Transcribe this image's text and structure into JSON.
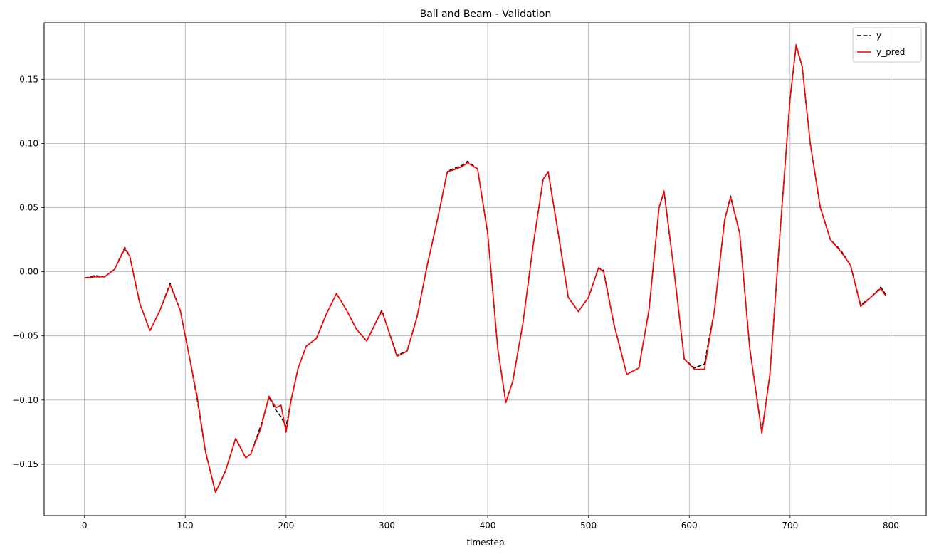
{
  "chart_data": {
    "type": "line",
    "title": "Ball and Beam - Validation",
    "xlabel": "timestep",
    "ylabel": "",
    "xlim": [
      -40,
      835
    ],
    "ylim": [
      -0.19,
      0.194
    ],
    "xticks": [
      0,
      100,
      200,
      300,
      400,
      500,
      600,
      700,
      800
    ],
    "xtick_labels": [
      "0",
      "100",
      "200",
      "300",
      "400",
      "500",
      "600",
      "700",
      "800"
    ],
    "yticks": [
      -0.15,
      -0.1,
      -0.05,
      0.0,
      0.05,
      0.1,
      0.15
    ],
    "ytick_labels": [
      "−0.15",
      "−0.10",
      "−0.05",
      "0.00",
      "0.05",
      "0.10",
      "0.15"
    ],
    "grid": true,
    "legend": "top-right",
    "series_x": [
      0,
      10,
      20,
      30,
      40,
      45,
      55,
      65,
      75,
      85,
      95,
      105,
      112,
      120,
      130,
      140,
      150,
      160,
      165,
      175,
      183,
      190,
      195,
      200,
      205,
      212,
      220,
      230,
      240,
      250,
      260,
      270,
      280,
      290,
      295,
      300,
      310,
      320,
      330,
      340,
      350,
      360,
      365,
      375,
      380,
      390,
      400,
      410,
      418,
      425,
      435,
      445,
      455,
      460,
      470,
      480,
      490,
      500,
      510,
      515,
      525,
      538,
      550,
      560,
      570,
      575,
      585,
      595,
      605,
      615,
      625,
      635,
      641,
      650,
      660,
      672,
      680,
      690,
      700,
      706,
      712,
      720,
      730,
      740,
      750,
      760,
      770,
      780,
      790,
      795
    ],
    "series": [
      {
        "name": "y",
        "color": "#000000",
        "style": "dashed",
        "values": [
          -0.005,
          -0.003,
          -0.004,
          0.002,
          0.019,
          0.012,
          -0.025,
          -0.046,
          -0.03,
          -0.009,
          -0.03,
          -0.07,
          -0.1,
          -0.14,
          -0.172,
          -0.155,
          -0.13,
          -0.145,
          -0.142,
          -0.12,
          -0.098,
          -0.108,
          -0.113,
          -0.121,
          -0.1,
          -0.075,
          -0.058,
          -0.052,
          -0.033,
          -0.017,
          -0.03,
          -0.045,
          -0.054,
          -0.038,
          -0.03,
          -0.042,
          -0.065,
          -0.062,
          -0.035,
          0.005,
          0.04,
          0.078,
          0.08,
          0.083,
          0.086,
          0.08,
          0.03,
          -0.06,
          -0.102,
          -0.085,
          -0.04,
          0.02,
          0.072,
          0.078,
          0.03,
          -0.02,
          -0.031,
          -0.02,
          0.003,
          0.001,
          -0.04,
          -0.08,
          -0.075,
          -0.03,
          0.05,
          0.062,
          0.0,
          -0.068,
          -0.075,
          -0.072,
          -0.03,
          0.04,
          0.059,
          0.03,
          -0.06,
          -0.125,
          -0.08,
          0.03,
          0.135,
          0.176,
          0.16,
          0.1,
          0.05,
          0.025,
          0.017,
          0.005,
          -0.026,
          -0.02,
          -0.012,
          -0.018
        ]
      },
      {
        "name": "y_pred",
        "color": "#ff0000",
        "style": "solid",
        "values": [
          -0.005,
          -0.004,
          -0.004,
          0.002,
          0.018,
          0.012,
          -0.025,
          -0.046,
          -0.03,
          -0.01,
          -0.03,
          -0.07,
          -0.098,
          -0.14,
          -0.172,
          -0.155,
          -0.13,
          -0.145,
          -0.142,
          -0.122,
          -0.097,
          -0.106,
          -0.104,
          -0.125,
          -0.1,
          -0.075,
          -0.058,
          -0.052,
          -0.033,
          -0.017,
          -0.03,
          -0.045,
          -0.054,
          -0.038,
          -0.031,
          -0.042,
          -0.066,
          -0.062,
          -0.035,
          0.005,
          0.04,
          0.078,
          0.079,
          0.082,
          0.085,
          0.08,
          0.03,
          -0.06,
          -0.102,
          -0.085,
          -0.04,
          0.02,
          0.072,
          0.078,
          0.03,
          -0.02,
          -0.031,
          -0.02,
          0.003,
          0.0,
          -0.04,
          -0.08,
          -0.075,
          -0.03,
          0.05,
          0.063,
          0.0,
          -0.068,
          -0.076,
          -0.076,
          -0.03,
          0.04,
          0.058,
          0.03,
          -0.06,
          -0.126,
          -0.08,
          0.03,
          0.135,
          0.177,
          0.16,
          0.1,
          0.05,
          0.025,
          0.016,
          0.005,
          -0.027,
          -0.02,
          -0.013,
          -0.019
        ]
      }
    ]
  }
}
